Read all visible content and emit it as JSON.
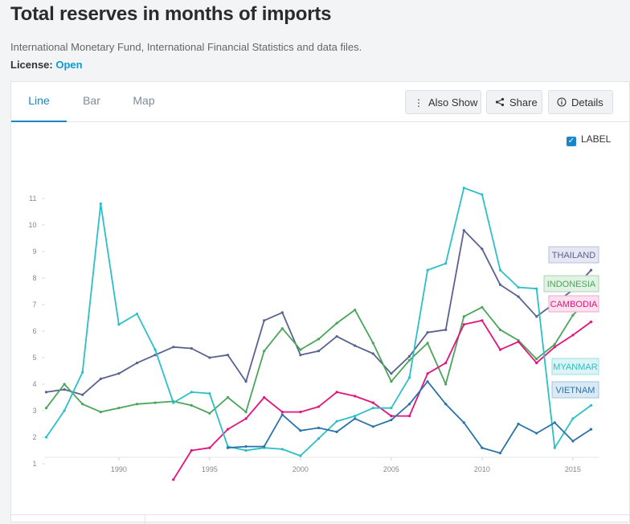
{
  "page": {
    "title": "Total reserves in months of imports",
    "source": "International Monetary Fund, International Financial Statistics and data files.",
    "license_label": "License:",
    "license_value": "Open"
  },
  "tabs": [
    {
      "label": "Line",
      "active": true
    },
    {
      "label": "Bar",
      "active": false
    },
    {
      "label": "Map",
      "active": false
    }
  ],
  "buttons": {
    "also_show": "Also Show",
    "share": "Share",
    "details": "Details"
  },
  "label_toggle": {
    "label": "LABEL",
    "checked": true
  },
  "colors": {
    "accent": "#1a86c7",
    "link": "#0a9bd8"
  },
  "chart_data": {
    "type": "line",
    "xlim": [
      1986,
      2016
    ],
    "ylim": [
      0.5,
      11.5
    ],
    "xticks": [
      1990,
      1995,
      2000,
      2005,
      2010,
      2015
    ],
    "yticks": [
      1,
      2,
      3,
      4,
      5,
      6,
      7,
      8,
      9,
      10,
      11
    ],
    "series": [
      {
        "name": "THAILAND",
        "color": "#5a6290",
        "labelBg": "#e6e7f3",
        "labelBorder": "#b9bddb",
        "x": [
          1986,
          1987,
          1988,
          1989,
          1990,
          1991,
          1992,
          1993,
          1994,
          1995,
          1996,
          1997,
          1998,
          1999,
          2000,
          2001,
          2002,
          2003,
          2004,
          2005,
          2006,
          2007,
          2008,
          2009,
          2010,
          2011,
          2012,
          2013,
          2014,
          2015,
          2016
        ],
        "y": [
          3.7,
          3.8,
          3.6,
          4.2,
          4.4,
          4.8,
          5.1,
          5.4,
          5.35,
          5.0,
          5.1,
          4.1,
          6.4,
          6.7,
          5.1,
          5.25,
          5.8,
          5.45,
          5.15,
          4.4,
          5.05,
          5.95,
          6.05,
          9.8,
          9.1,
          7.75,
          7.3,
          6.55,
          7.05,
          7.55,
          8.3
        ]
      },
      {
        "name": "INDONESIA",
        "color": "#4aa55a",
        "labelBg": "#e2f2e4",
        "labelBorder": "#a9d6b0",
        "x": [
          1986,
          1987,
          1988,
          1989,
          1990,
          1991,
          1992,
          1993,
          1994,
          1995,
          1996,
          1997,
          1998,
          1999,
          2000,
          2001,
          2002,
          2003,
          2004,
          2005,
          2006,
          2007,
          2008,
          2009,
          2010,
          2011,
          2012,
          2013,
          2014,
          2015,
          2016
        ],
        "y": [
          3.1,
          4.0,
          3.25,
          2.95,
          3.1,
          3.25,
          3.3,
          3.35,
          3.2,
          2.9,
          3.5,
          2.95,
          5.25,
          6.1,
          5.3,
          5.7,
          6.3,
          6.8,
          5.55,
          4.1,
          4.9,
          5.55,
          4.0,
          6.55,
          6.9,
          6.05,
          5.65,
          4.95,
          5.5,
          6.6,
          7.3
        ]
      },
      {
        "name": "CAMBODIA",
        "color": "#e2137d",
        "labelBg": "#fbe1ee",
        "labelBorder": "#f0a6cb",
        "x": [
          1993,
          1994,
          1995,
          1996,
          1997,
          1998,
          1999,
          2000,
          2001,
          2002,
          2003,
          2004,
          2005,
          2006,
          2007,
          2008,
          2009,
          2010,
          2011,
          2012,
          2013,
          2014,
          2015,
          2016
        ],
        "y": [
          0.4,
          1.5,
          1.6,
          2.3,
          2.7,
          3.5,
          2.95,
          2.95,
          3.15,
          3.7,
          3.55,
          3.3,
          2.8,
          2.8,
          4.4,
          4.8,
          6.25,
          6.4,
          5.3,
          5.6,
          4.8,
          5.4,
          5.85,
          6.35
        ]
      },
      {
        "name": "MYANMAR",
        "color": "#2bbfc7",
        "labelBg": "#dcf4f6",
        "labelBorder": "#96dfe4",
        "x": [
          1986,
          1987,
          1988,
          1989,
          1990,
          1991,
          1992,
          1993,
          1994,
          1995,
          1996,
          1997,
          1998,
          1999,
          2000,
          2001,
          2002,
          2003,
          2004,
          2005,
          2006,
          2007,
          2008,
          2009,
          2010,
          2011,
          2012,
          2013,
          2014,
          2015,
          2016
        ],
        "y": [
          2.0,
          3.0,
          4.45,
          10.8,
          6.25,
          6.65,
          5.3,
          3.3,
          3.7,
          3.65,
          1.65,
          1.5,
          1.6,
          1.55,
          1.3,
          1.95,
          2.6,
          2.8,
          3.1,
          3.1,
          4.25,
          8.3,
          8.55,
          11.4,
          11.15,
          8.3,
          7.65,
          7.6,
          1.6,
          2.7,
          3.2
        ]
      },
      {
        "name": "VIETNAM",
        "color": "#2a73a8",
        "labelBg": "#dbe9f4",
        "labelBorder": "#9cc3df",
        "x": [
          1996,
          1997,
          1998,
          1999,
          2000,
          2001,
          2002,
          2003,
          2004,
          2005,
          2006,
          2007,
          2008,
          2009,
          2010,
          2011,
          2012,
          2013,
          2014,
          2015,
          2016
        ],
        "y": [
          1.6,
          1.65,
          1.65,
          2.85,
          2.25,
          2.35,
          2.2,
          2.7,
          2.4,
          2.65,
          3.25,
          4.1,
          3.25,
          2.55,
          1.6,
          1.4,
          2.5,
          2.15,
          2.55,
          1.85,
          2.3
        ]
      }
    ]
  }
}
